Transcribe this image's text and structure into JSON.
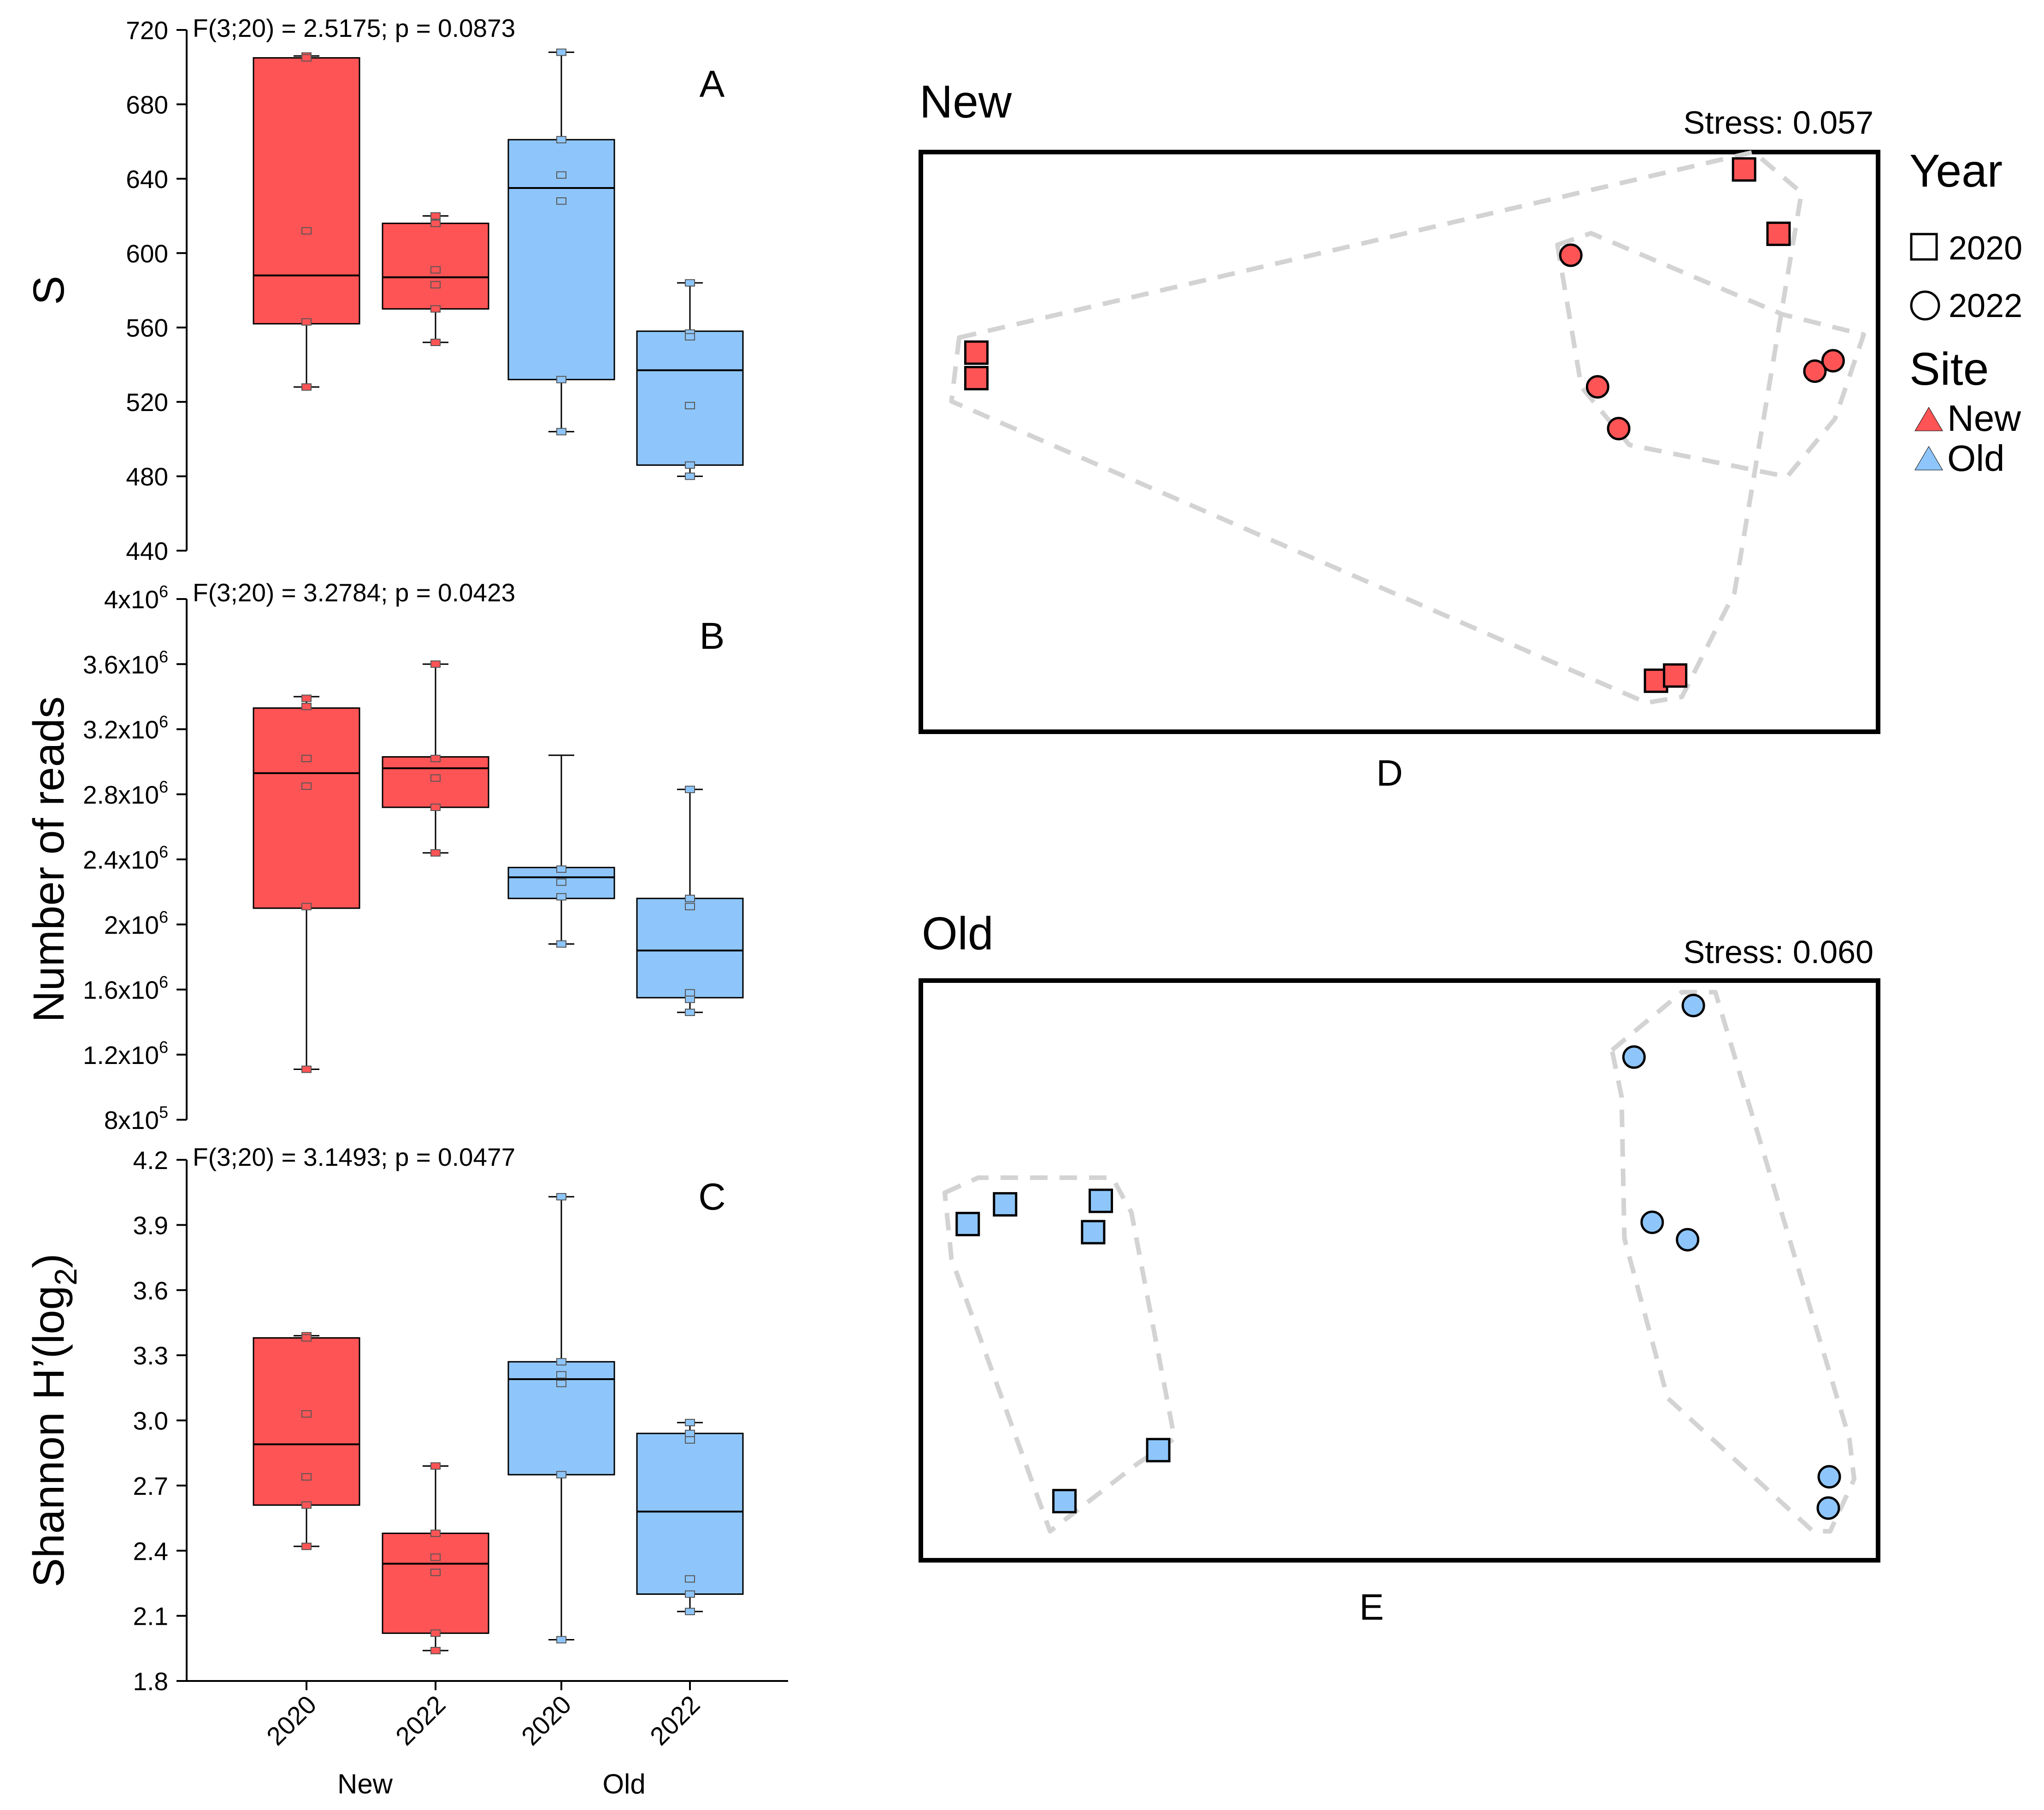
{
  "colors": {
    "new": "#ff5455",
    "old": "#8ec6fb",
    "hull": "#d3d3d3",
    "outline": "#000000"
  },
  "boxplots": {
    "x_group_labels": [
      "New",
      "Old"
    ],
    "categories": [
      "2020",
      "2022",
      "2020",
      "2022"
    ],
    "category_sites": [
      "new",
      "new",
      "old",
      "old"
    ],
    "panels": [
      {
        "letter": "A",
        "stat_text": "F(3;20) = 2.5175; p = 0.0873",
        "ylabel": "S",
        "ylim": [
          440,
          720
        ],
        "ticks": [
          440,
          480,
          520,
          560,
          600,
          640,
          680,
          720
        ],
        "tick_labels": [
          "440",
          "480",
          "520",
          "560",
          "600",
          "640",
          "680",
          "720"
        ],
        "boxes": [
          {
            "whisker_low": 528,
            "q1": 562,
            "median": 588,
            "q3": 705,
            "whisker_high": 706,
            "points": [
              706,
              705,
              612,
              563,
              528
            ]
          },
          {
            "whisker_low": 552,
            "q1": 570,
            "median": 587,
            "q3": 616,
            "whisker_high": 620,
            "points": [
              620,
              616,
              591,
              583,
              570,
              552
            ]
          },
          {
            "whisker_low": 504,
            "q1": 532,
            "median": 635,
            "q3": 661,
            "whisker_high": 708,
            "points": [
              708,
              661,
              642,
              628,
              532,
              504
            ]
          },
          {
            "whisker_low": 480,
            "q1": 486,
            "median": 537,
            "q3": 558,
            "whisker_high": 584,
            "points": [
              584,
              557,
              555,
              518,
              486,
              480
            ]
          }
        ]
      },
      {
        "letter": "B",
        "stat_text": "F(3;20) = 3.2784; p = 0.0423",
        "ylabel": "Number of reads",
        "ylim": [
          800000,
          4000000
        ],
        "ticks": [
          800000,
          1200000,
          1600000,
          2000000,
          2400000,
          2800000,
          3200000,
          3600000,
          4000000
        ],
        "tick_labels": [
          [
            "8x10",
            "5"
          ],
          [
            "1.2x10",
            "6"
          ],
          [
            "1.6x10",
            "6"
          ],
          [
            "2x10",
            "6"
          ],
          [
            "2.4x10",
            "6"
          ],
          [
            "2.8x10",
            "6"
          ],
          [
            "3.2x10",
            "6"
          ],
          [
            "3.6x10",
            "6"
          ],
          [
            "4x10",
            "6"
          ]
        ],
        "boxes": [
          {
            "whisker_low": 1110000,
            "q1": 2100000,
            "median": 2930000,
            "q3": 3330000,
            "whisker_high": 3400000,
            "points": [
              3390000,
              3340000,
              3020000,
              2850000,
              2110000,
              1110000
            ]
          },
          {
            "whisker_low": 2440000,
            "q1": 2720000,
            "median": 2960000,
            "q3": 3030000,
            "whisker_high": 3600000,
            "points": [
              3600000,
              3020000,
              2900000,
              2720000,
              2440000
            ]
          },
          {
            "whisker_low": 1880000,
            "q1": 2160000,
            "median": 2290000,
            "q3": 2350000,
            "whisker_high": 3040000,
            "points": [
              2340000,
              2260000,
              2170000,
              1880000
            ]
          },
          {
            "whisker_low": 1460000,
            "q1": 1550000,
            "median": 1840000,
            "q3": 2160000,
            "whisker_high": 2830000,
            "points": [
              2830000,
              2160000,
              2110000,
              1580000,
              1540000,
              1460000
            ]
          }
        ]
      },
      {
        "letter": "C",
        "stat_text": "F(3;20) = 3.1493; p = 0.0477",
        "ylabel": "Shannon H’(log",
        "ylabel_sub": "2",
        "ylabel_end": ")",
        "ylim": [
          1.8,
          4.2
        ],
        "ticks": [
          1.8,
          2.1,
          2.4,
          2.7,
          3.0,
          3.3,
          3.6,
          3.9,
          4.2
        ],
        "tick_labels": [
          "1.8",
          "2.1",
          "2.4",
          "2.7",
          "3.0",
          "3.3",
          "3.6",
          "3.9",
          "4.2"
        ],
        "boxes": [
          {
            "whisker_low": 2.42,
            "q1": 2.61,
            "median": 2.89,
            "q3": 3.38,
            "whisker_high": 3.39,
            "points": [
              3.39,
              3.38,
              3.03,
              2.74,
              2.61,
              2.42
            ]
          },
          {
            "whisker_low": 1.94,
            "q1": 2.02,
            "median": 2.34,
            "q3": 2.48,
            "whisker_high": 2.79,
            "points": [
              2.79,
              2.48,
              2.37,
              2.3,
              2.02,
              1.94
            ]
          },
          {
            "whisker_low": 1.99,
            "q1": 2.75,
            "median": 3.19,
            "q3": 3.27,
            "whisker_high": 4.03,
            "points": [
              4.03,
              3.27,
              3.21,
              3.17,
              2.75,
              1.99
            ]
          },
          {
            "whisker_low": 2.12,
            "q1": 2.2,
            "median": 2.58,
            "q3": 2.94,
            "whisker_high": 2.99,
            "points": [
              2.99,
              2.94,
              2.91,
              2.27,
              2.2,
              2.12
            ]
          }
        ]
      }
    ]
  },
  "nmds": [
    {
      "panel_title": "New",
      "letter": "D",
      "stress_text": "Stress: 0.057",
      "site": "new",
      "points": [
        {
          "year": "2020",
          "x": 0.058,
          "y": 0.346
        },
        {
          "year": "2020",
          "x": 0.058,
          "y": 0.39
        },
        {
          "year": "2020",
          "x": 0.86,
          "y": 0.03
        },
        {
          "year": "2020",
          "x": 0.896,
          "y": 0.141
        },
        {
          "year": "2020",
          "x": 0.768,
          "y": 0.912
        },
        {
          "year": "2020",
          "x": 0.788,
          "y": 0.903
        },
        {
          "year": "2022",
          "x": 0.679,
          "y": 0.178
        },
        {
          "year": "2022",
          "x": 0.707,
          "y": 0.405
        },
        {
          "year": "2022",
          "x": 0.729,
          "y": 0.477
        },
        {
          "year": "2022",
          "x": 0.934,
          "y": 0.378
        },
        {
          "year": "2022",
          "x": 0.953,
          "y": 0.36
        }
      ],
      "hulls": [
        [
          [
            0.04,
            0.32
          ],
          [
            0.87,
            0.0
          ],
          [
            0.92,
            0.07
          ],
          [
            0.85,
            0.76
          ],
          [
            0.795,
            0.94
          ],
          [
            0.758,
            0.95
          ],
          [
            0.032,
            0.43
          ]
        ],
        [
          [
            0.665,
            0.16
          ],
          [
            0.7,
            0.14
          ],
          [
            0.9,
            0.28
          ],
          [
            0.985,
            0.315
          ],
          [
            0.955,
            0.46
          ],
          [
            0.905,
            0.56
          ],
          [
            0.74,
            0.505
          ],
          [
            0.69,
            0.405
          ]
        ]
      ]
    },
    {
      "panel_title": "Old",
      "letter": "E",
      "stress_text": "Stress: 0.060",
      "site": "old",
      "points": [
        {
          "year": "2020",
          "x": 0.049,
          "y": 0.42
        },
        {
          "year": "2020",
          "x": 0.088,
          "y": 0.386
        },
        {
          "year": "2020",
          "x": 0.18,
          "y": 0.434
        },
        {
          "year": "2020",
          "x": 0.188,
          "y": 0.38
        },
        {
          "year": "2020",
          "x": 0.248,
          "y": 0.81
        },
        {
          "year": "2020",
          "x": 0.15,
          "y": 0.898
        },
        {
          "year": "2022",
          "x": 0.807,
          "y": 0.043
        },
        {
          "year": "2022",
          "x": 0.745,
          "y": 0.132
        },
        {
          "year": "2022",
          "x": 0.764,
          "y": 0.417
        },
        {
          "year": "2022",
          "x": 0.801,
          "y": 0.447
        },
        {
          "year": "2022",
          "x": 0.949,
          "y": 0.856
        },
        {
          "year": "2022",
          "x": 0.948,
          "y": 0.91
        }
      ],
      "hulls": [
        [
          [
            0.025,
            0.366
          ],
          [
            0.06,
            0.34
          ],
          [
            0.2,
            0.34
          ],
          [
            0.22,
            0.4
          ],
          [
            0.265,
            0.79
          ],
          [
            0.225,
            0.835
          ],
          [
            0.135,
            0.95
          ],
          [
            0.032,
            0.48
          ]
        ],
        [
          [
            0.722,
            0.12
          ],
          [
            0.795,
            0.02
          ],
          [
            0.83,
            0.02
          ],
          [
            0.97,
            0.79
          ],
          [
            0.975,
            0.86
          ],
          [
            0.95,
            0.95
          ],
          [
            0.932,
            0.95
          ],
          [
            0.78,
            0.72
          ],
          [
            0.735,
            0.445
          ],
          [
            0.732,
            0.2
          ]
        ]
      ]
    }
  ],
  "legend": {
    "year_title": "Year",
    "year_items": [
      {
        "shape": "square",
        "label": "2020"
      },
      {
        "shape": "circle",
        "label": "2022"
      }
    ],
    "site_title": "Site",
    "site_items": [
      {
        "color_key": "new",
        "label": "New"
      },
      {
        "color_key": "old",
        "label": "Old"
      }
    ]
  },
  "chart_data": [
    {
      "type": "box",
      "title": "F(3;20) = 2.5175; p = 0.0873",
      "panel": "A",
      "xlabel": "",
      "ylabel": "S",
      "categories": [
        "New 2020",
        "New 2022",
        "Old 2020",
        "Old 2022"
      ],
      "ylim": [
        440,
        720
      ],
      "medians": [
        588,
        587,
        635,
        537
      ],
      "q1": [
        562,
        570,
        532,
        486
      ],
      "q3": [
        705,
        616,
        661,
        558
      ],
      "whiskers": [
        [
          528,
          706
        ],
        [
          552,
          620
        ],
        [
          504,
          708
        ],
        [
          480,
          584
        ]
      ]
    },
    {
      "type": "box",
      "title": "F(3;20) = 3.2784; p = 0.0423",
      "panel": "B",
      "xlabel": "",
      "ylabel": "Number of reads",
      "categories": [
        "New 2020",
        "New 2022",
        "Old 2020",
        "Old 2022"
      ],
      "ylim": [
        800000,
        4000000
      ],
      "medians": [
        2930000,
        2960000,
        2290000,
        1840000
      ],
      "q1": [
        2100000,
        2720000,
        2160000,
        1550000
      ],
      "q3": [
        3330000,
        3030000,
        2350000,
        2160000
      ],
      "whiskers": [
        [
          1110000,
          3400000
        ],
        [
          2440000,
          3600000
        ],
        [
          1880000,
          3040000
        ],
        [
          1460000,
          2830000
        ]
      ]
    },
    {
      "type": "box",
      "title": "F(3;20) = 3.1493; p = 0.0477",
      "panel": "C",
      "xlabel": "",
      "ylabel": "Shannon H’(log2)",
      "categories": [
        "New 2020",
        "New 2022",
        "Old 2020",
        "Old 2022"
      ],
      "ylim": [
        1.8,
        4.2
      ],
      "medians": [
        2.89,
        2.34,
        3.19,
        2.58
      ],
      "q1": [
        2.61,
        2.02,
        2.75,
        2.2
      ],
      "q3": [
        3.38,
        2.48,
        3.27,
        2.94
      ],
      "whiskers": [
        [
          2.42,
          3.39
        ],
        [
          1.94,
          2.79
        ],
        [
          1.99,
          4.03
        ],
        [
          2.12,
          2.99
        ]
      ]
    },
    {
      "type": "scatter",
      "title": "New",
      "panel": "D",
      "note": "Stress: 0.057",
      "series": [
        {
          "name": "2020",
          "marker": "square"
        },
        {
          "name": "2022",
          "marker": "circle"
        }
      ]
    },
    {
      "type": "scatter",
      "title": "Old",
      "panel": "E",
      "note": "Stress: 0.060",
      "series": [
        {
          "name": "2020",
          "marker": "square"
        },
        {
          "name": "2022",
          "marker": "circle"
        }
      ]
    }
  ]
}
